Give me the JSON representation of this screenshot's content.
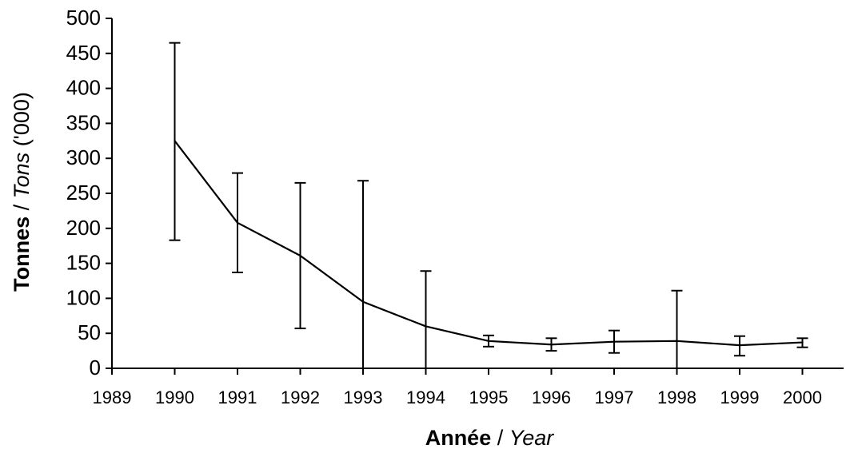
{
  "chart_data": {
    "type": "line",
    "title": "",
    "xlabel": {
      "bold": "Année",
      "sep": " / ",
      "italic": "Year"
    },
    "ylabel": {
      "bold": "Tonnes",
      "sep": " / ",
      "italic": "Tons",
      "suffix": " ('000)"
    },
    "xlim": [
      1989,
      2000
    ],
    "ylim": [
      0,
      500
    ],
    "x_ticks": [
      1989,
      1990,
      1991,
      1992,
      1993,
      1994,
      1995,
      1996,
      1997,
      1998,
      1999,
      2000
    ],
    "y_ticks": [
      0,
      50,
      100,
      150,
      200,
      250,
      300,
      350,
      400,
      450,
      500
    ],
    "grid": false,
    "legend": "none",
    "series": [
      {
        "x": [
          1990,
          1991,
          1992,
          1993,
          1994,
          1995,
          1996,
          1997,
          1998,
          1999,
          2000
        ],
        "values": [
          325,
          208,
          161,
          95,
          60,
          39,
          34,
          38,
          39,
          33,
          37
        ],
        "error_low": [
          183,
          137,
          57,
          0,
          0,
          31,
          25,
          22,
          0,
          18,
          30
        ],
        "error_high": [
          465,
          279,
          265,
          268,
          139,
          47,
          43,
          54,
          111,
          46,
          43
        ]
      }
    ],
    "color": "#000000"
  }
}
